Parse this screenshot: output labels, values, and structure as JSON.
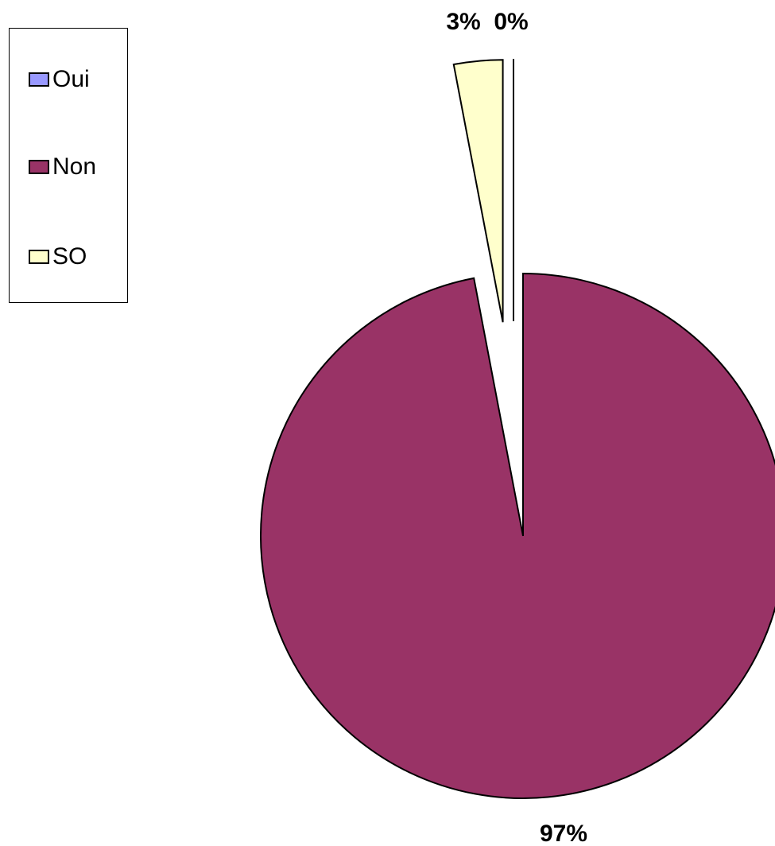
{
  "chart_data": {
    "type": "pie",
    "categories": [
      "Oui",
      "Non",
      "SO"
    ],
    "values": [
      0,
      97,
      3
    ],
    "data_labels": [
      "0%",
      "97%",
      "3%"
    ],
    "colors": [
      "#9999ff",
      "#993366",
      "#ffffcc"
    ],
    "exploded": [
      true,
      false,
      true
    ],
    "legend_position": "top-left"
  },
  "legend": {
    "items": [
      {
        "label": "Oui",
        "color": "#9999ff"
      },
      {
        "label": "Non",
        "color": "#993366"
      },
      {
        "label": "SO",
        "color": "#ffffcc"
      }
    ]
  }
}
